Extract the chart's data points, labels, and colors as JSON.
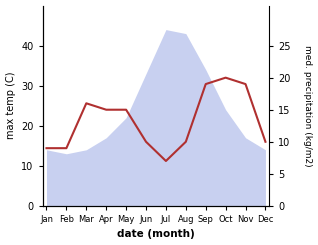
{
  "months": [
    "Jan",
    "Feb",
    "Mar",
    "Apr",
    "May",
    "Jun",
    "Jul",
    "Aug",
    "Sep",
    "Oct",
    "Nov",
    "Dec"
  ],
  "temperature": [
    14,
    13,
    14,
    17,
    22,
    33,
    44,
    43,
    34,
    24,
    17,
    14
  ],
  "precipitation": [
    9,
    9,
    16,
    15,
    15,
    10,
    7,
    10,
    19,
    20,
    19,
    10
  ],
  "precip_color": "#b03030",
  "ylim_left": [
    0,
    50
  ],
  "ylim_right": [
    0,
    31.25
  ],
  "ylabel_left": "max temp (C)",
  "ylabel_right": "med. precipitation (kg/m2)",
  "xlabel": "date (month)",
  "fill_color": "#c8d0f0",
  "fill_alpha": 1.0,
  "background_color": "#ffffff"
}
